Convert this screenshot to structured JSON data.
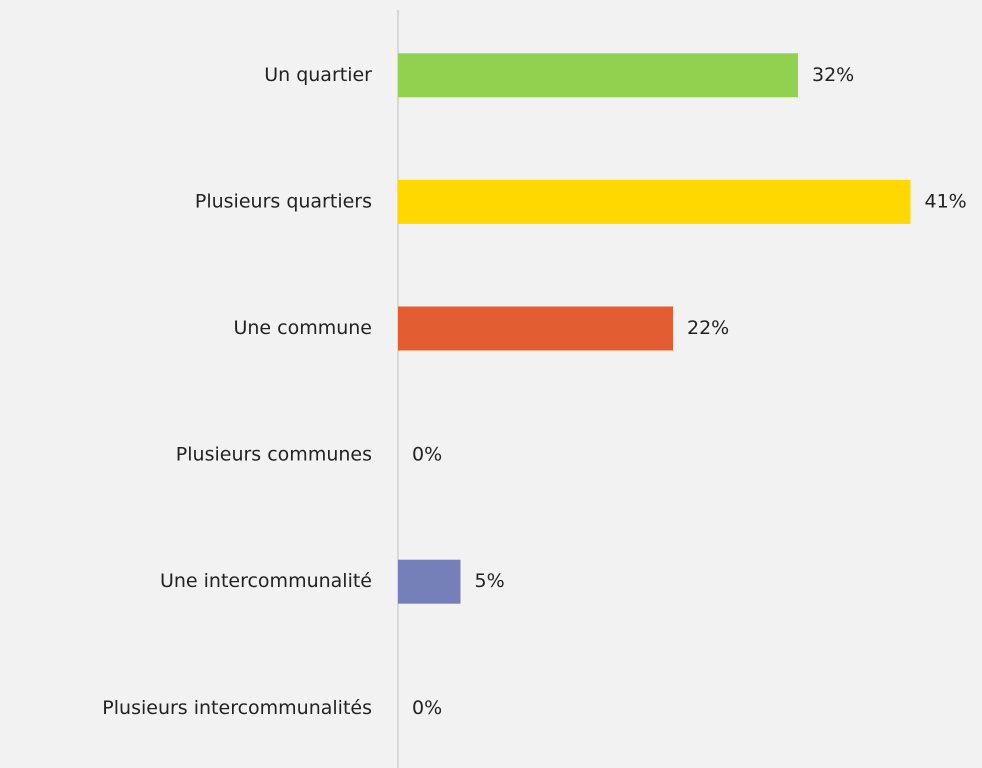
{
  "chart_data": {
    "type": "bar",
    "orientation": "horizontal",
    "categories": [
      "Un quartier",
      "Plusieurs quartiers",
      "Une commune",
      "Plusieurs communes",
      "Une intercommunalité",
      "Plusieurs intercommunalités"
    ],
    "values": [
      32,
      41,
      22,
      0,
      5,
      0
    ],
    "value_labels": [
      "32%",
      "41%",
      "22%",
      "0%",
      "5%",
      "0%"
    ],
    "colors": [
      "#92d050",
      "#ffd800",
      "#e35d33",
      "#8d9bd1",
      "#7680b8",
      "#7680b8"
    ]
  }
}
